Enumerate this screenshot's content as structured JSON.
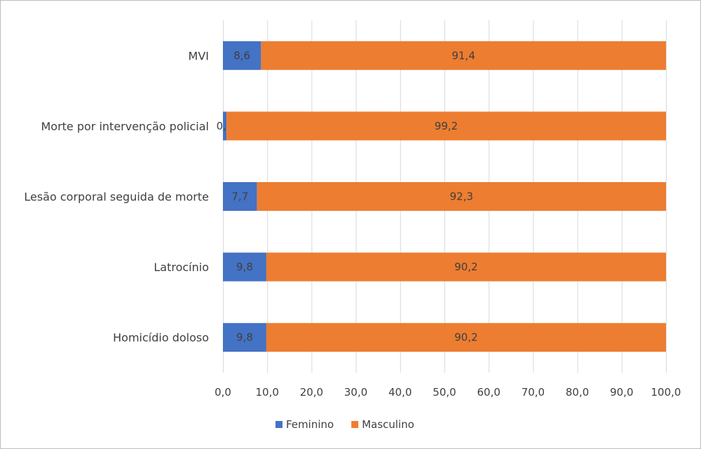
{
  "chart_data": {
    "type": "bar",
    "orientation": "horizontal",
    "stacked": true,
    "categories": [
      "MVI",
      "Morte por intervenção policial",
      "Lesão corporal seguida de morte",
      "Latrocínio",
      "Homicídio doloso"
    ],
    "series": [
      {
        "name": "Feminino",
        "values": [
          8.6,
          0.8,
          7.7,
          9.8,
          9.8
        ],
        "labels": [
          "8,6",
          "0,8",
          "7,7",
          "9,8",
          "9,8"
        ],
        "color": "#4472c4"
      },
      {
        "name": "Masculino",
        "values": [
          91.4,
          99.2,
          92.3,
          90.2,
          90.2
        ],
        "labels": [
          "91,4",
          "99,2",
          "92,3",
          "90,2",
          "90,2"
        ],
        "color": "#ed7d31"
      }
    ],
    "xlim": [
      0,
      100
    ],
    "xticks": [
      0,
      10,
      20,
      30,
      40,
      50,
      60,
      70,
      80,
      90,
      100
    ],
    "xtick_labels": [
      "0,0",
      "10,0",
      "20,0",
      "30,0",
      "40,0",
      "50,0",
      "60,0",
      "70,0",
      "80,0",
      "90,0",
      "100,0"
    ],
    "grid": "vertical",
    "legend_position": "bottom"
  }
}
